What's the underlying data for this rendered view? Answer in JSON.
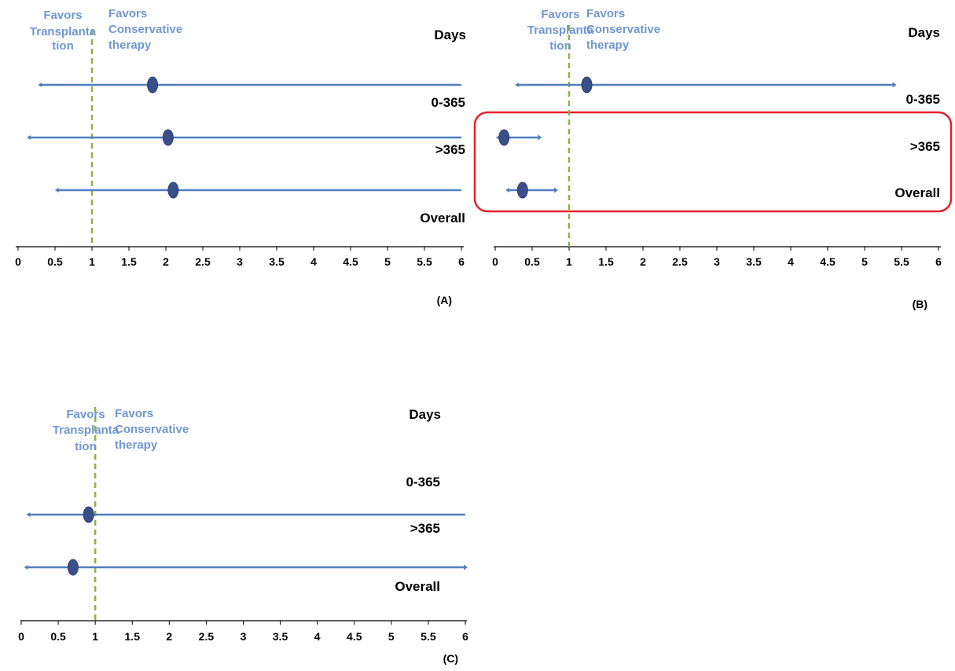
{
  "chart_data": [
    {
      "type": "forest",
      "panel_label": "(A)",
      "header": "Days",
      "favors_left": [
        "Favors",
        "Transplanta",
        "tion"
      ],
      "favors_right": [
        "Favors",
        "Conservative",
        "therapy"
      ],
      "xlim": [
        0,
        6
      ],
      "xticks": [
        "0",
        "0.5",
        "1",
        "1.5",
        "2",
        "2.5",
        "3",
        "3.5",
        "4",
        "4.5",
        "5",
        "5.5",
        "6"
      ],
      "reference_line": 1,
      "rows": [
        {
          "label": "0-365",
          "estimate": 1.82,
          "lower": 0.3,
          "upper": 6,
          "upper_arrow": false
        },
        {
          "label": ">365",
          "estimate": 2.03,
          "lower": 0.15,
          "upper": 6,
          "upper_arrow": false
        },
        {
          "label": "Overall",
          "estimate": 2.1,
          "lower": 0.53,
          "upper": 6,
          "upper_arrow": false
        }
      ]
    },
    {
      "type": "forest",
      "panel_label": "(B)",
      "header": "Days",
      "favors_left": [
        "Favors",
        "Transplanta",
        "tion"
      ],
      "favors_right": [
        "Favors",
        "Conservative",
        "therapy"
      ],
      "xlim": [
        0,
        6
      ],
      "xticks": [
        "0",
        "0.5",
        "1",
        "1.5",
        "2",
        "2.5",
        "3",
        "3.5",
        "4",
        "4.5",
        "5",
        "5.5",
        "6"
      ],
      "reference_line": 1,
      "highlight_rows": [
        ">365",
        "Overall"
      ],
      "rows": [
        {
          "label": "0-365",
          "estimate": 1.24,
          "lower": 0.3,
          "upper": 5.4,
          "upper_arrow": true
        },
        {
          "label": ">365",
          "estimate": 0.12,
          "lower": 0.04,
          "upper": 0.6,
          "upper_arrow": true
        },
        {
          "label": "Overall",
          "estimate": 0.37,
          "lower": 0.17,
          "upper": 0.82,
          "upper_arrow": true
        }
      ]
    },
    {
      "type": "forest",
      "panel_label": "(C)",
      "header": "Days",
      "favors_left": [
        "Favors",
        "Transplanta",
        "tion"
      ],
      "favors_right": [
        "Favors",
        "Conservative",
        "therapy"
      ],
      "xlim": [
        0,
        6
      ],
      "xticks": [
        "0",
        "0.5",
        "1",
        "1.5",
        "2",
        "2.5",
        "3",
        "3.5",
        "4",
        "4.5",
        "5",
        "5.5",
        "6"
      ],
      "reference_line": 1,
      "rows": [
        {
          "label": "0-365",
          "estimate": null,
          "lower": null,
          "upper": null,
          "upper_arrow": false
        },
        {
          "label": ">365",
          "estimate": 0.91,
          "lower": 0.1,
          "upper": 6,
          "upper_arrow": false
        },
        {
          "label": "Overall",
          "estimate": 0.7,
          "lower": 0.07,
          "upper": 6,
          "upper_arrow": true
        }
      ]
    }
  ],
  "colors": {
    "line": "#4f7fc0",
    "marker": "#3a4f8a",
    "reference": "#8ab34a",
    "favor_text": "#6f97cf",
    "highlight": "#e8202a"
  }
}
